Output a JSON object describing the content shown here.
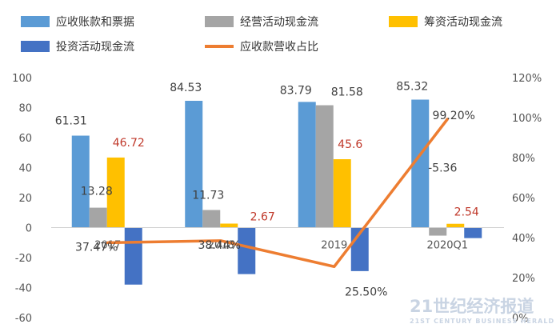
{
  "chart_data": {
    "type": "bar",
    "categories": [
      "2017",
      "2018",
      "2019",
      "2020Q1"
    ],
    "series": [
      {
        "name": "应收账款和票据",
        "type": "bar",
        "axis": "left",
        "color": "#5b9bd5",
        "values": [
          61.31,
          84.53,
          83.79,
          85.32
        ]
      },
      {
        "name": "经营活动现金流",
        "type": "bar",
        "axis": "left",
        "color": "#a5a5a5",
        "values": [
          13.28,
          11.73,
          81.58,
          -5.36
        ]
      },
      {
        "name": "筹资活动现金流",
        "type": "bar",
        "axis": "left",
        "color": "#ffc000",
        "values": [
          46.72,
          2.67,
          45.6,
          2.54
        ]
      },
      {
        "name": "投资活动现金流",
        "type": "bar",
        "axis": "left",
        "color": "#4472c4",
        "values": [
          -38.0,
          -31.0,
          -29.0,
          -7.0
        ]
      },
      {
        "name": "应收款营收占比",
        "type": "line",
        "axis": "right",
        "color": "#ed7d31",
        "values": [
          37.47,
          38.44,
          25.5,
          99.2
        ]
      }
    ],
    "data_labels": [
      {
        "series": 0,
        "index": 0,
        "text": "61.31",
        "color": "#404040"
      },
      {
        "series": 0,
        "index": 1,
        "text": "84.53",
        "color": "#404040"
      },
      {
        "series": 0,
        "index": 2,
        "text": "83.79",
        "color": "#404040"
      },
      {
        "series": 0,
        "index": 3,
        "text": "85.32",
        "color": "#404040"
      },
      {
        "series": 1,
        "index": 0,
        "text": "13.28",
        "color": "#404040"
      },
      {
        "series": 1,
        "index": 1,
        "text": "11.73",
        "color": "#404040"
      },
      {
        "series": 1,
        "index": 2,
        "text": "81.58",
        "color": "#404040"
      },
      {
        "series": 1,
        "index": 3,
        "text": "-5.36",
        "color": "#404040"
      },
      {
        "series": 2,
        "index": 0,
        "text": "46.72",
        "color": "#c0392b"
      },
      {
        "series": 2,
        "index": 1,
        "text": "2.67",
        "color": "#c0392b"
      },
      {
        "series": 2,
        "index": 2,
        "text": "45.6",
        "color": "#c0392b"
      },
      {
        "series": 2,
        "index": 3,
        "text": "2.54",
        "color": "#c0392b"
      },
      {
        "series": 4,
        "index": 0,
        "text": "37.47%",
        "color": "#404040"
      },
      {
        "series": 4,
        "index": 1,
        "text": "38.44%",
        "color": "#404040"
      },
      {
        "series": 4,
        "index": 2,
        "text": "25.50%",
        "color": "#404040"
      },
      {
        "series": 4,
        "index": 3,
        "text": "99.20%",
        "color": "#404040"
      }
    ],
    "y_left": {
      "min": -60,
      "max": 100,
      "step": 20,
      "ticks": [
        "-60",
        "-40",
        "-20",
        "0",
        "20",
        "40",
        "60",
        "80",
        "100"
      ]
    },
    "y_right": {
      "min": 0,
      "max": 120,
      "step": 20,
      "ticks": [
        "0%",
        "20%",
        "40%",
        "60%",
        "80%",
        "100%",
        "120%"
      ]
    },
    "grid": false,
    "legend_position": "top",
    "title": "",
    "xlabel": "",
    "ylabel": ""
  },
  "watermark": {
    "brand": "21世纪经济报道",
    "brand_en": "21ST CENTURY BUSINESS HERALD"
  }
}
